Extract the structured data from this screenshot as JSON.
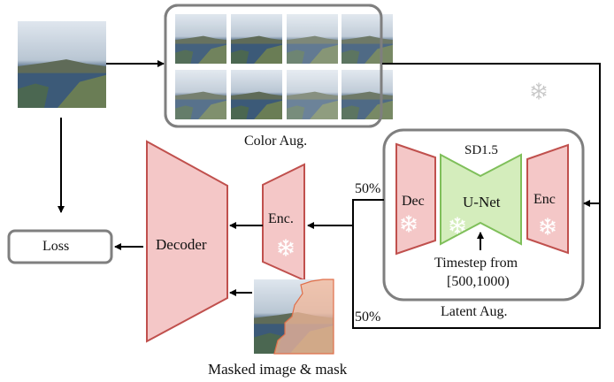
{
  "color_aug": {
    "label": "Color Aug.",
    "thumbnail_count": 8
  },
  "latent_aug": {
    "label": "Latent Aug.",
    "model_name": "SD1.5",
    "dec_label": "Dec",
    "unet_label": "U-Net",
    "enc_label": "Enc",
    "timestep_line1": "Timestep from",
    "timestep_line2": "[500,1000)"
  },
  "encoder": {
    "label": "Enc."
  },
  "decoder": {
    "label": "Decoder"
  },
  "loss": {
    "label": "Loss"
  },
  "masked_input": {
    "caption": "Masked image & mask"
  },
  "branches": {
    "upper_pct": "50%",
    "lower_pct": "50%"
  },
  "icons": {
    "frozen": "snowflake-icon"
  },
  "colors": {
    "module_fill": "#f4c7c7",
    "module_stroke": "#c0504d",
    "unet_fill": "#d4edbc",
    "unet_stroke": "#7fbf5a",
    "group_stroke": "#7f7f7f"
  }
}
